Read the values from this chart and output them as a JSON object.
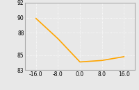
{
  "x": [
    -16.0,
    -8.0,
    0.0,
    8.0,
    16.0
  ],
  "y": [
    89.9,
    87.2,
    84.1,
    84.3,
    84.8
  ],
  "line_color": "#FFA500",
  "xlim": [
    -20,
    20
  ],
  "ylim": [
    83,
    92
  ],
  "xticks": [
    -16.0,
    -8.0,
    0.0,
    8.0,
    16.0
  ],
  "xtick_labels": [
    "-16.0",
    "-8.0",
    "0.0",
    "8.0",
    "16.0"
  ],
  "yticks": [
    83,
    85,
    88,
    90,
    92
  ],
  "ytick_labels": [
    "83",
    "85",
    "88",
    "90",
    "92"
  ],
  "plot_bg_color": "#E8E8E8",
  "fig_bg_color": "#E8E8E8",
  "grid_color": "#FFFFFF",
  "grid_style": ":",
  "linewidth": 1.2,
  "tick_fontsize": 5.5,
  "border_color": "#AAAAAA"
}
